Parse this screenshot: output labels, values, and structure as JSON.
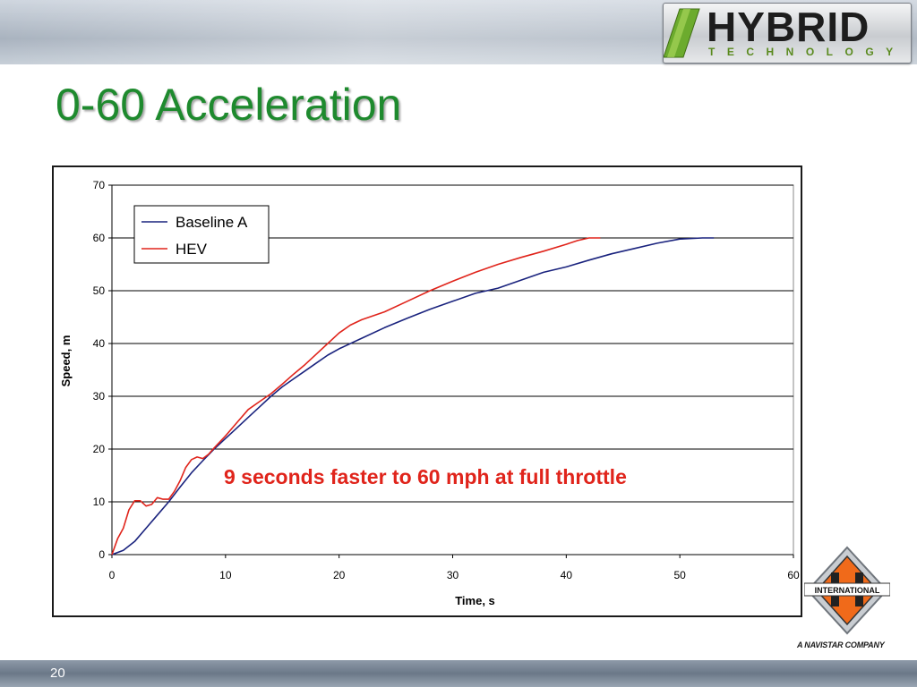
{
  "header": {
    "brand_main": "HYBRID",
    "brand_sub": "TECHNOLOGY"
  },
  "slide": {
    "title": "0-60 Acceleration",
    "page_number": "20"
  },
  "footer_logo": {
    "badge_text": "INTERNATIONAL",
    "tagline": "A NAVISTAR COMPANY"
  },
  "colors": {
    "title": "#1e8a2e",
    "baseline": "#1a237e",
    "hev": "#e0241b",
    "annotation": "#e0241b"
  },
  "chart_data": {
    "type": "line",
    "title": "",
    "xlabel": "Time, s",
    "ylabel": "Speed, m",
    "xlim": [
      0,
      60
    ],
    "ylim": [
      0,
      70
    ],
    "xticks": [
      0,
      10,
      20,
      30,
      40,
      50,
      60
    ],
    "yticks": [
      0,
      10,
      20,
      30,
      40,
      50,
      60,
      70
    ],
    "grid": "horizontal",
    "legend_position": "top-left",
    "annotation": "9 seconds faster to 60 mph at full throttle",
    "series": [
      {
        "name": "Baseline  A",
        "color": "#1a237e",
        "points": [
          [
            0,
            0
          ],
          [
            1,
            0.8
          ],
          [
            2,
            2.5
          ],
          [
            3,
            5
          ],
          [
            4,
            7.5
          ],
          [
            5,
            10
          ],
          [
            6,
            12.8
          ],
          [
            7,
            15.5
          ],
          [
            8,
            17.8
          ],
          [
            9,
            20
          ],
          [
            10,
            22
          ],
          [
            11,
            24
          ],
          [
            12,
            26
          ],
          [
            13,
            28
          ],
          [
            14,
            30
          ],
          [
            15,
            31.8
          ],
          [
            16,
            33.3
          ],
          [
            17,
            34.8
          ],
          [
            18,
            36.3
          ],
          [
            19,
            37.8
          ],
          [
            20,
            39
          ],
          [
            22,
            41
          ],
          [
            24,
            43
          ],
          [
            26,
            44.8
          ],
          [
            28,
            46.5
          ],
          [
            30,
            48
          ],
          [
            32,
            49.5
          ],
          [
            34,
            50.5
          ],
          [
            36,
            52
          ],
          [
            38,
            53.5
          ],
          [
            40,
            54.5
          ],
          [
            42,
            55.8
          ],
          [
            44,
            57
          ],
          [
            46,
            58
          ],
          [
            48,
            59
          ],
          [
            50,
            59.8
          ],
          [
            52,
            60
          ],
          [
            53,
            60
          ]
        ]
      },
      {
        "name": "HEV",
        "color": "#e0241b",
        "points": [
          [
            0,
            0
          ],
          [
            0.5,
            3
          ],
          [
            1,
            5
          ],
          [
            1.5,
            8.5
          ],
          [
            2,
            10.2
          ],
          [
            2.5,
            10.2
          ],
          [
            3,
            9.2
          ],
          [
            3.5,
            9.5
          ],
          [
            4,
            10.8
          ],
          [
            4.5,
            10.5
          ],
          [
            5,
            10.5
          ],
          [
            5.5,
            12
          ],
          [
            6,
            14
          ],
          [
            6.5,
            16.5
          ],
          [
            7,
            18
          ],
          [
            7.5,
            18.5
          ],
          [
            8,
            18.2
          ],
          [
            8.5,
            19
          ],
          [
            9,
            20.2
          ],
          [
            10,
            22.5
          ],
          [
            11,
            25
          ],
          [
            12,
            27.5
          ],
          [
            13,
            29
          ],
          [
            14,
            30.5
          ],
          [
            15,
            32.3
          ],
          [
            16,
            34.2
          ],
          [
            17,
            36
          ],
          [
            18,
            38
          ],
          [
            19,
            40
          ],
          [
            20,
            42
          ],
          [
            21,
            43.5
          ],
          [
            22,
            44.5
          ],
          [
            24,
            46
          ],
          [
            26,
            48
          ],
          [
            28,
            50
          ],
          [
            30,
            51.8
          ],
          [
            32,
            53.5
          ],
          [
            34,
            55
          ],
          [
            36,
            56.3
          ],
          [
            38,
            57.5
          ],
          [
            40,
            58.8
          ],
          [
            41,
            59.5
          ],
          [
            42,
            60
          ],
          [
            43,
            60
          ]
        ]
      }
    ]
  }
}
